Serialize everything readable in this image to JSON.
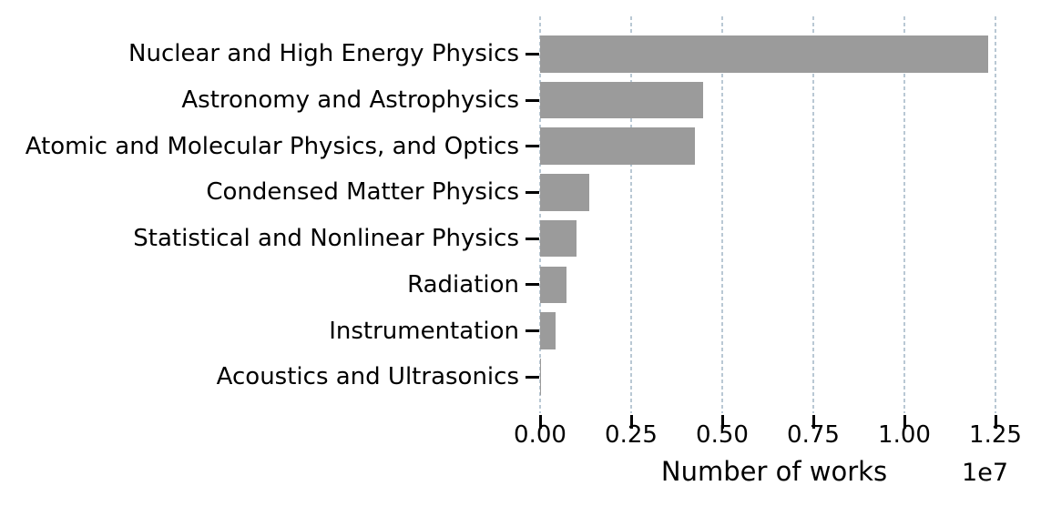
{
  "chart_data": {
    "type": "bar",
    "orientation": "horizontal",
    "title": "",
    "xlabel": "Number of works",
    "ylabel": "",
    "offset_text": "1e7",
    "categories": [
      "Nuclear and High Energy Physics",
      "Astronomy and Astrophysics",
      "Atomic and Molecular Physics, and Optics",
      "Condensed Matter Physics",
      "Statistical and Nonlinear Physics",
      "Radiation",
      "Instrumentation",
      "Acoustics and Ultrasonics"
    ],
    "values": [
      12300000,
      4480000,
      4240000,
      1360000,
      1010000,
      730000,
      430000,
      30000
    ],
    "x_tick_labels": [
      "0.00",
      "0.25",
      "0.50",
      "0.75",
      "1.00",
      "1.25"
    ],
    "x_tick_values": [
      0,
      2500000,
      5000000,
      7500000,
      10000000,
      12500000
    ],
    "xlim": [
      0,
      13625000
    ],
    "grid": {
      "axis": "x",
      "style": "dashed"
    },
    "legend": null,
    "colors": {
      "bar": "#9b9b9b",
      "gridline": "#b9c8d4",
      "tick_mark": "#000000",
      "text": "#000000",
      "background": "#ffffff"
    }
  }
}
